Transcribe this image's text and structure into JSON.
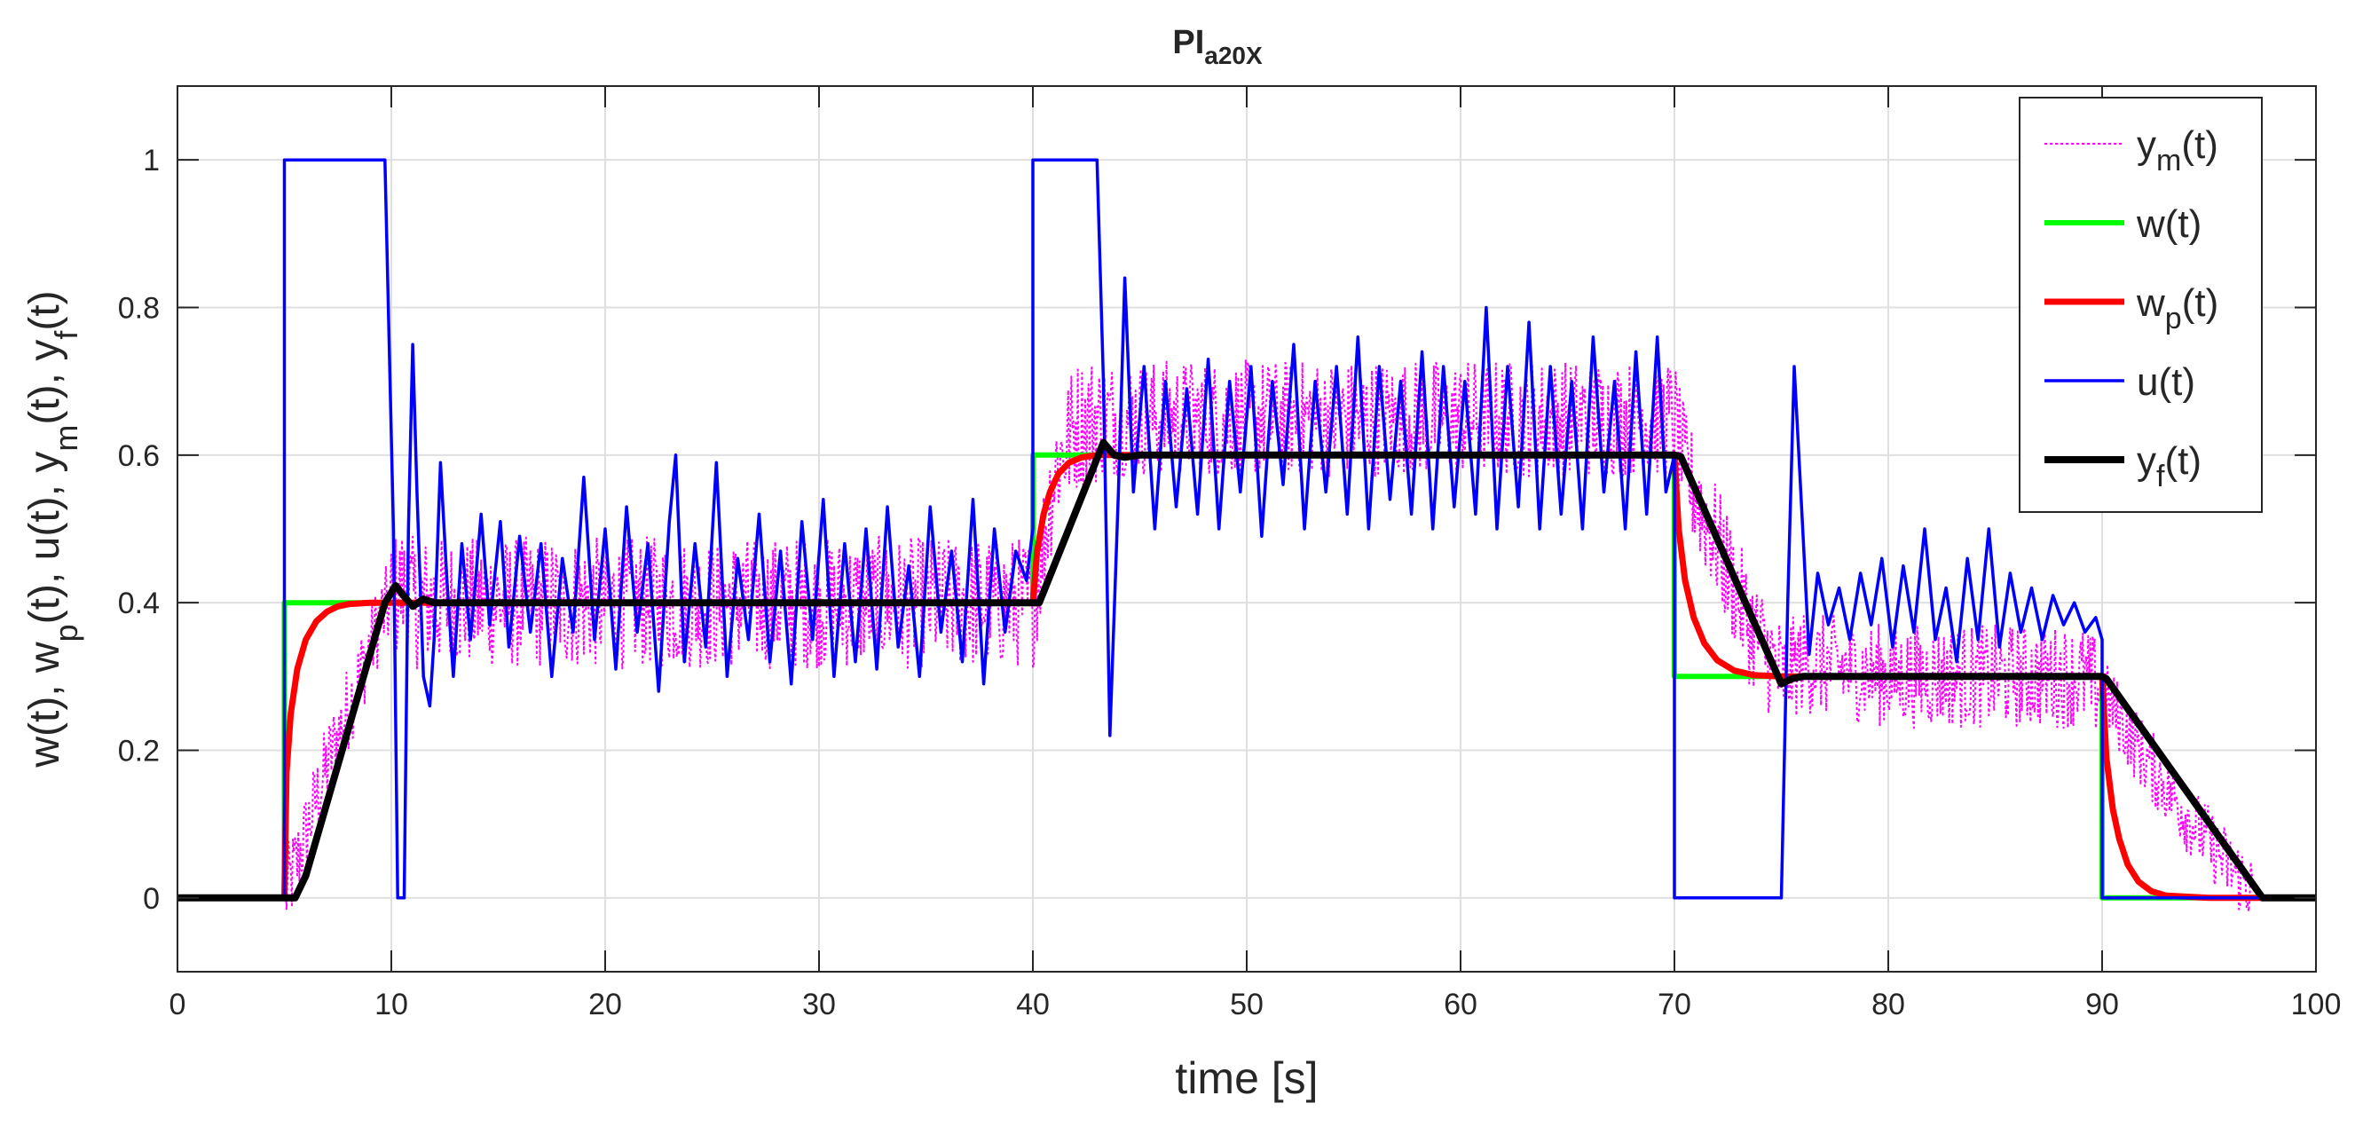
{
  "chart_data": {
    "type": "line",
    "title": "PI",
    "title_subscript": "a20X",
    "xlabel": "time [s]",
    "ylabel": {
      "parts": [
        {
          "t": "w(t), w"
        },
        {
          "t": "p",
          "sub": true
        },
        {
          "t": "(t), u(t), y"
        },
        {
          "t": "m",
          "sub": true
        },
        {
          "t": "(t), y"
        },
        {
          "t": "f",
          "sub": true
        },
        {
          "t": "(t)"
        }
      ]
    },
    "xlim": [
      0,
      100
    ],
    "ylim": [
      -0.1,
      1.1
    ],
    "xticks": [
      0,
      10,
      20,
      30,
      40,
      50,
      60,
      70,
      80,
      90,
      100
    ],
    "yticks": [
      0,
      0.2,
      0.4,
      0.6,
      0.8,
      1
    ],
    "xtick_labels": [
      "0",
      "10",
      "20",
      "30",
      "40",
      "50",
      "60",
      "70",
      "80",
      "90",
      "100"
    ],
    "ytick_labels": [
      "0",
      "0.2",
      "0.4",
      "0.6",
      "0.8",
      "1"
    ],
    "grid": true,
    "legend_position": "top-right",
    "series": [
      {
        "name": "ym",
        "legend": {
          "base": "y",
          "sub": "m",
          "tail": "(t)"
        },
        "color": "#ff00ff",
        "style": "dotted",
        "points": [
          [
            0,
            0
          ],
          [
            5,
            0
          ],
          [
            5.6,
            0.05
          ],
          [
            7,
            0.18
          ],
          [
            8.5,
            0.3
          ],
          [
            9.5,
            0.38
          ],
          [
            10.5,
            0.42
          ],
          [
            11,
            0.4
          ],
          [
            40,
            0.4
          ],
          [
            40.5,
            0.48
          ],
          [
            41,
            0.58
          ],
          [
            42,
            0.64
          ],
          [
            43,
            0.65
          ],
          [
            44,
            0.65
          ],
          [
            50,
            0.65
          ],
          [
            60,
            0.65
          ],
          [
            70,
            0.65
          ],
          [
            70.5,
            0.58
          ],
          [
            72,
            0.48
          ],
          [
            73.5,
            0.37
          ],
          [
            75,
            0.3
          ],
          [
            76,
            0.32
          ],
          [
            80,
            0.3
          ],
          [
            89,
            0.3
          ],
          [
            90,
            0.28
          ],
          [
            92,
            0.19
          ],
          [
            94,
            0.11
          ],
          [
            96,
            0.04
          ],
          [
            97.5,
            0
          ],
          [
            100,
            0
          ]
        ],
        "noise": [
          [
            5,
            10,
            0.06
          ],
          [
            10,
            40,
            0.09
          ],
          [
            40,
            43,
            0.09
          ],
          [
            43,
            70,
            0.08
          ],
          [
            70,
            75,
            0.08
          ],
          [
            75,
            90,
            0.07
          ],
          [
            90,
            97,
            0.05
          ]
        ]
      },
      {
        "name": "w",
        "legend": {
          "base": "w",
          "sub": "",
          "tail": "(t)"
        },
        "color": "#00ff00",
        "style": "solid",
        "points": [
          [
            0,
            0
          ],
          [
            5,
            0
          ],
          [
            5,
            0.4
          ],
          [
            40,
            0.4
          ],
          [
            40,
            0.6
          ],
          [
            70,
            0.6
          ],
          [
            70,
            0.3
          ],
          [
            90,
            0.3
          ],
          [
            90,
            0
          ],
          [
            100,
            0
          ]
        ]
      },
      {
        "name": "wp",
        "legend": {
          "base": "w",
          "sub": "p",
          "tail": "(t)"
        },
        "color": "#ff0000",
        "style": "solid",
        "points": [
          [
            0,
            0
          ],
          [
            5,
            0
          ],
          [
            5.1,
            0.17
          ],
          [
            5.3,
            0.25
          ],
          [
            5.6,
            0.31
          ],
          [
            6,
            0.35
          ],
          [
            6.5,
            0.375
          ],
          [
            7,
            0.388
          ],
          [
            7.5,
            0.395
          ],
          [
            8,
            0.398
          ],
          [
            9,
            0.4
          ],
          [
            40,
            0.4
          ],
          [
            40.2,
            0.47
          ],
          [
            40.5,
            0.52
          ],
          [
            40.8,
            0.55
          ],
          [
            41.2,
            0.575
          ],
          [
            41.7,
            0.59
          ],
          [
            42.3,
            0.597
          ],
          [
            43,
            0.6
          ],
          [
            70,
            0.6
          ],
          [
            70.2,
            0.5
          ],
          [
            70.5,
            0.43
          ],
          [
            70.9,
            0.38
          ],
          [
            71.4,
            0.345
          ],
          [
            72,
            0.322
          ],
          [
            72.8,
            0.308
          ],
          [
            73.7,
            0.302
          ],
          [
            75,
            0.3
          ],
          [
            90,
            0.3
          ],
          [
            90.2,
            0.19
          ],
          [
            90.5,
            0.12
          ],
          [
            90.8,
            0.08
          ],
          [
            91.2,
            0.045
          ],
          [
            91.7,
            0.022
          ],
          [
            92.3,
            0.009
          ],
          [
            93,
            0.003
          ],
          [
            95,
            0
          ],
          [
            100,
            0
          ]
        ]
      },
      {
        "name": "u",
        "legend": {
          "base": "u",
          "sub": "",
          "tail": "(t)"
        },
        "color": "#0000ff",
        "style": "solid",
        "points": [
          [
            0,
            0
          ],
          [
            5,
            0
          ],
          [
            5,
            1
          ],
          [
            9.7,
            1
          ],
          [
            10.1,
            0.5
          ],
          [
            10.3,
            0
          ],
          [
            10.6,
            0
          ],
          [
            10.8,
            0.5
          ],
          [
            11,
            0.75
          ],
          [
            11.2,
            0.55
          ],
          [
            11.5,
            0.3
          ],
          [
            11.8,
            0.26
          ],
          [
            12,
            0.35
          ],
          [
            12.3,
            0.59
          ],
          [
            12.6,
            0.43
          ],
          [
            12.9,
            0.3
          ],
          [
            13.3,
            0.48
          ],
          [
            13.7,
            0.35
          ],
          [
            14.2,
            0.52
          ],
          [
            14.6,
            0.37
          ],
          [
            15.1,
            0.51
          ],
          [
            15.5,
            0.34
          ],
          [
            16,
            0.49
          ],
          [
            16.5,
            0.36
          ],
          [
            17,
            0.48
          ],
          [
            17.5,
            0.3
          ],
          [
            18,
            0.46
          ],
          [
            18.5,
            0.36
          ],
          [
            19,
            0.57
          ],
          [
            19.5,
            0.35
          ],
          [
            20,
            0.5
          ],
          [
            20.5,
            0.31
          ],
          [
            21,
            0.53
          ],
          [
            21.5,
            0.36
          ],
          [
            22,
            0.48
          ],
          [
            22.5,
            0.28
          ],
          [
            23,
            0.51
          ],
          [
            23.3,
            0.6
          ],
          [
            23.7,
            0.32
          ],
          [
            24.2,
            0.48
          ],
          [
            24.7,
            0.34
          ],
          [
            25.2,
            0.59
          ],
          [
            25.7,
            0.3
          ],
          [
            26.2,
            0.46
          ],
          [
            26.7,
            0.35
          ],
          [
            27.2,
            0.52
          ],
          [
            27.7,
            0.32
          ],
          [
            28.2,
            0.47
          ],
          [
            28.7,
            0.29
          ],
          [
            29.2,
            0.51
          ],
          [
            29.7,
            0.35
          ],
          [
            30.2,
            0.54
          ],
          [
            30.7,
            0.3
          ],
          [
            31.2,
            0.48
          ],
          [
            31.7,
            0.32
          ],
          [
            32.2,
            0.5
          ],
          [
            32.7,
            0.31
          ],
          [
            33.2,
            0.53
          ],
          [
            33.7,
            0.34
          ],
          [
            34.2,
            0.45
          ],
          [
            34.7,
            0.3
          ],
          [
            35.2,
            0.53
          ],
          [
            35.7,
            0.36
          ],
          [
            36.2,
            0.47
          ],
          [
            36.7,
            0.32
          ],
          [
            37.2,
            0.54
          ],
          [
            37.7,
            0.29
          ],
          [
            38.2,
            0.5
          ],
          [
            38.7,
            0.36
          ],
          [
            39.2,
            0.47
          ],
          [
            39.7,
            0.43
          ],
          [
            40,
            0.5
          ],
          [
            40,
            1
          ],
          [
            43,
            1
          ],
          [
            43.3,
            0.7
          ],
          [
            43.6,
            0.22
          ],
          [
            44,
            0.55
          ],
          [
            44.3,
            0.84
          ],
          [
            44.7,
            0.55
          ],
          [
            45.2,
            0.72
          ],
          [
            45.7,
            0.5
          ],
          [
            46.2,
            0.7
          ],
          [
            46.7,
            0.53
          ],
          [
            47.2,
            0.69
          ],
          [
            47.7,
            0.52
          ],
          [
            48.2,
            0.73
          ],
          [
            48.7,
            0.5
          ],
          [
            49.2,
            0.7
          ],
          [
            49.7,
            0.55
          ],
          [
            50.2,
            0.72
          ],
          [
            50.7,
            0.49
          ],
          [
            51.2,
            0.7
          ],
          [
            51.7,
            0.56
          ],
          [
            52.2,
            0.75
          ],
          [
            52.7,
            0.5
          ],
          [
            53.2,
            0.7
          ],
          [
            53.7,
            0.55
          ],
          [
            54.2,
            0.72
          ],
          [
            54.7,
            0.52
          ],
          [
            55.2,
            0.76
          ],
          [
            55.7,
            0.5
          ],
          [
            56.2,
            0.72
          ],
          [
            56.7,
            0.54
          ],
          [
            57.2,
            0.7
          ],
          [
            57.7,
            0.52
          ],
          [
            58.2,
            0.74
          ],
          [
            58.7,
            0.5
          ],
          [
            59.2,
            0.72
          ],
          [
            59.7,
            0.53
          ],
          [
            60.2,
            0.7
          ],
          [
            60.7,
            0.52
          ],
          [
            61.2,
            0.8
          ],
          [
            61.7,
            0.5
          ],
          [
            62.2,
            0.72
          ],
          [
            62.7,
            0.53
          ],
          [
            63.2,
            0.78
          ],
          [
            63.7,
            0.5
          ],
          [
            64.2,
            0.72
          ],
          [
            64.7,
            0.52
          ],
          [
            65.2,
            0.7
          ],
          [
            65.7,
            0.5
          ],
          [
            66.2,
            0.76
          ],
          [
            66.7,
            0.55
          ],
          [
            67.2,
            0.7
          ],
          [
            67.7,
            0.5
          ],
          [
            68.2,
            0.74
          ],
          [
            68.7,
            0.52
          ],
          [
            69.2,
            0.76
          ],
          [
            69.6,
            0.55
          ],
          [
            70,
            0.6
          ],
          [
            70,
            0
          ],
          [
            75,
            0
          ],
          [
            75.3,
            0.4
          ],
          [
            75.6,
            0.72
          ],
          [
            76,
            0.5
          ],
          [
            76.3,
            0.33
          ],
          [
            76.7,
            0.44
          ],
          [
            77.2,
            0.37
          ],
          [
            77.7,
            0.42
          ],
          [
            78.2,
            0.35
          ],
          [
            78.7,
            0.44
          ],
          [
            79.2,
            0.37
          ],
          [
            79.7,
            0.46
          ],
          [
            80.2,
            0.34
          ],
          [
            80.7,
            0.45
          ],
          [
            81.2,
            0.36
          ],
          [
            81.7,
            0.5
          ],
          [
            82.2,
            0.35
          ],
          [
            82.7,
            0.42
          ],
          [
            83.2,
            0.32
          ],
          [
            83.7,
            0.46
          ],
          [
            84.2,
            0.35
          ],
          [
            84.7,
            0.5
          ],
          [
            85.2,
            0.34
          ],
          [
            85.7,
            0.44
          ],
          [
            86.2,
            0.36
          ],
          [
            86.7,
            0.42
          ],
          [
            87.2,
            0.35
          ],
          [
            87.7,
            0.41
          ],
          [
            88.2,
            0.37
          ],
          [
            88.7,
            0.4
          ],
          [
            89.2,
            0.36
          ],
          [
            89.7,
            0.38
          ],
          [
            90,
            0.35
          ],
          [
            90,
            0
          ],
          [
            100,
            0
          ]
        ]
      },
      {
        "name": "yf",
        "legend": {
          "base": "y",
          "sub": "f",
          "tail": "(t)"
        },
        "color": "#000000",
        "style": "solid",
        "points": [
          [
            0,
            0
          ],
          [
            5.5,
            0
          ],
          [
            6,
            0.03
          ],
          [
            7,
            0.13
          ],
          [
            8,
            0.23
          ],
          [
            9,
            0.33
          ],
          [
            9.7,
            0.4
          ],
          [
            10.2,
            0.423
          ],
          [
            10.7,
            0.405
          ],
          [
            11,
            0.395
          ],
          [
            11.5,
            0.405
          ],
          [
            12,
            0.4
          ],
          [
            40,
            0.4
          ],
          [
            40.3,
            0.4
          ],
          [
            43.3,
            0.617
          ],
          [
            43.8,
            0.6
          ],
          [
            44.3,
            0.597
          ],
          [
            45,
            0.6
          ],
          [
            70,
            0.6
          ],
          [
            70.3,
            0.598
          ],
          [
            75,
            0.29
          ],
          [
            75.5,
            0.297
          ],
          [
            76,
            0.3
          ],
          [
            90,
            0.3
          ],
          [
            90.2,
            0.297
          ],
          [
            97.5,
            0
          ],
          [
            100,
            0
          ]
        ]
      }
    ]
  }
}
